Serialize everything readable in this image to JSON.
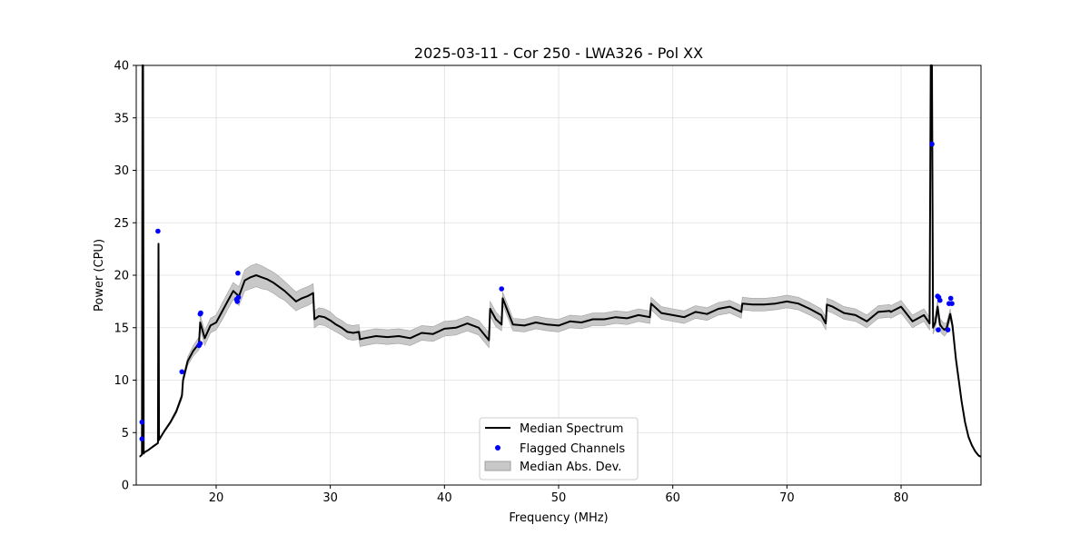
{
  "chart_data": {
    "type": "line",
    "title": "2025-03-11 - Cor 250 - LWA326 - Pol XX",
    "xlabel": "Frequency (MHz)",
    "ylabel": "Power (CPU)",
    "xlim": [
      13.0,
      87.0
    ],
    "ylim": [
      0,
      40
    ],
    "xticks": [
      20,
      30,
      40,
      50,
      60,
      70,
      80
    ],
    "yticks": [
      0,
      5,
      10,
      15,
      20,
      25,
      30,
      35,
      40
    ],
    "grid": true,
    "legend_position": "lower-center",
    "legend": [
      "Median Spectrum",
      "Flagged Channels",
      "Median Abs. Dev."
    ],
    "colors": {
      "median": "#000000",
      "flagged": "#0000ff",
      "band": "#c8c8c8",
      "band_edge": "#a0a0a0"
    },
    "series": [
      {
        "name": "Median Spectrum",
        "x": [
          13.3,
          13.4,
          13.5,
          13.55,
          13.6,
          13.65,
          13.7,
          14.0,
          14.5,
          14.9,
          14.95,
          15.0,
          15.1,
          15.5,
          16.0,
          16.5,
          17.0,
          17.1,
          17.5,
          18.0,
          18.5,
          18.6,
          19.0,
          19.5,
          20.0,
          20.5,
          21.0,
          21.5,
          22.0,
          22.5,
          23.0,
          23.5,
          24.0,
          24.5,
          25.0,
          25.5,
          26.0,
          26.5,
          27.0,
          27.5,
          28.0,
          28.5,
          28.6,
          29.0,
          29.5,
          30.0,
          30.5,
          31.0,
          31.5,
          32.0,
          32.5,
          32.6,
          33.0,
          34.0,
          35.0,
          36.0,
          37.0,
          38.0,
          39.0,
          40.0,
          41.0,
          42.0,
          43.0,
          43.9,
          44.0,
          44.5,
          45.0,
          45.1,
          46.0,
          47.0,
          48.0,
          49.0,
          50.0,
          51.0,
          52.0,
          53.0,
          54.0,
          55.0,
          56.0,
          57.0,
          58.0,
          58.1,
          59.0,
          60.0,
          61.0,
          62.0,
          63.0,
          64.0,
          65.0,
          66.0,
          66.1,
          67.0,
          68.0,
          69.0,
          70.0,
          71.0,
          72.0,
          73.0,
          73.4,
          73.5,
          74.0,
          75.0,
          76.0,
          77.0,
          78.0,
          79.0,
          79.1,
          80.0,
          81.0,
          82.0,
          82.5,
          82.6,
          82.7,
          82.8,
          83.0,
          83.2,
          83.4,
          83.6,
          83.8,
          84.0,
          84.3,
          84.5,
          84.8,
          85.0,
          85.3,
          85.6,
          85.9,
          86.2,
          86.5,
          86.8,
          87.0
        ],
        "values": [
          2.7,
          2.8,
          2.9,
          40.0,
          40.0,
          3.0,
          3.1,
          3.3,
          3.7,
          4.0,
          23.0,
          4.3,
          4.5,
          5.2,
          6.0,
          7.0,
          8.5,
          10.0,
          11.8,
          12.8,
          13.5,
          15.5,
          14.0,
          15.2,
          15.5,
          16.5,
          17.5,
          18.5,
          18.0,
          19.5,
          19.8,
          20.0,
          19.8,
          19.6,
          19.3,
          18.9,
          18.5,
          18.0,
          17.5,
          17.8,
          18.0,
          18.3,
          15.8,
          16.1,
          16.0,
          15.7,
          15.3,
          15.0,
          14.6,
          14.5,
          14.6,
          13.9,
          14.0,
          14.2,
          14.1,
          14.2,
          14.0,
          14.5,
          14.4,
          14.9,
          15.0,
          15.4,
          15.0,
          13.8,
          16.8,
          15.8,
          15.3,
          17.8,
          15.3,
          15.2,
          15.5,
          15.3,
          15.2,
          15.6,
          15.5,
          15.8,
          15.8,
          16.0,
          15.9,
          16.2,
          16.0,
          17.3,
          16.4,
          16.2,
          16.0,
          16.5,
          16.3,
          16.8,
          17.0,
          16.5,
          17.3,
          17.2,
          17.2,
          17.3,
          17.5,
          17.3,
          16.8,
          16.2,
          15.4,
          17.2,
          17.0,
          16.4,
          16.2,
          15.6,
          16.5,
          16.6,
          16.5,
          17.0,
          15.6,
          16.2,
          15.4,
          40.0,
          40.0,
          15.0,
          15.5,
          17.0,
          15.3,
          15.0,
          14.8,
          15.0,
          16.3,
          15.2,
          12.0,
          10.4,
          8.0,
          6.0,
          4.6,
          3.8,
          3.2,
          2.8,
          2.7
        ],
        "band_halfwidth": [
          0.05,
          0.05,
          0.05,
          0.0,
          0.0,
          0.05,
          0.05,
          0.05,
          0.08,
          0.08,
          0.0,
          0.1,
          0.1,
          0.12,
          0.15,
          0.2,
          0.3,
          0.3,
          0.4,
          0.5,
          0.6,
          0.7,
          0.7,
          0.7,
          0.7,
          0.8,
          0.8,
          0.8,
          0.9,
          1.0,
          1.1,
          1.1,
          1.1,
          1.0,
          1.0,
          1.0,
          0.9,
          0.9,
          0.9,
          0.9,
          0.9,
          0.9,
          0.8,
          0.8,
          0.8,
          0.8,
          0.7,
          0.7,
          0.7,
          0.7,
          0.7,
          0.7,
          0.7,
          0.7,
          0.7,
          0.7,
          0.7,
          0.7,
          0.7,
          0.7,
          0.7,
          0.7,
          0.7,
          0.7,
          0.7,
          0.7,
          0.6,
          0.6,
          0.6,
          0.6,
          0.6,
          0.6,
          0.6,
          0.6,
          0.6,
          0.6,
          0.6,
          0.6,
          0.6,
          0.6,
          0.6,
          0.6,
          0.6,
          0.6,
          0.6,
          0.6,
          0.6,
          0.6,
          0.6,
          0.6,
          0.6,
          0.6,
          0.6,
          0.6,
          0.6,
          0.6,
          0.6,
          0.6,
          0.6,
          0.6,
          0.6,
          0.6,
          0.6,
          0.6,
          0.6,
          0.6,
          0.6,
          0.6,
          0.6,
          0.6,
          0.6,
          0.0,
          0.0,
          0.6,
          0.6,
          0.6,
          0.6,
          0.6,
          0.6,
          0.5,
          0.5,
          0.4,
          0.3,
          0.3,
          0.2,
          0.15,
          0.1,
          0.08,
          0.05,
          0.05,
          0.05
        ]
      },
      {
        "name": "Flagged Channels",
        "points": [
          [
            13.5,
            4.4
          ],
          [
            13.5,
            6.0
          ],
          [
            14.9,
            24.2
          ],
          [
            17.0,
            10.8
          ],
          [
            18.5,
            13.3
          ],
          [
            18.6,
            13.5
          ],
          [
            18.6,
            16.3
          ],
          [
            18.65,
            16.4
          ],
          [
            21.8,
            17.7
          ],
          [
            21.85,
            17.5
          ],
          [
            21.9,
            20.2
          ],
          [
            21.95,
            17.9
          ],
          [
            45.0,
            18.7
          ],
          [
            82.7,
            32.5
          ],
          [
            83.2,
            18.0
          ],
          [
            83.25,
            14.8
          ],
          [
            83.3,
            17.9
          ],
          [
            83.4,
            17.6
          ],
          [
            84.1,
            14.8
          ],
          [
            84.2,
            17.3
          ],
          [
            84.35,
            17.8
          ],
          [
            84.45,
            17.3
          ]
        ]
      }
    ]
  }
}
